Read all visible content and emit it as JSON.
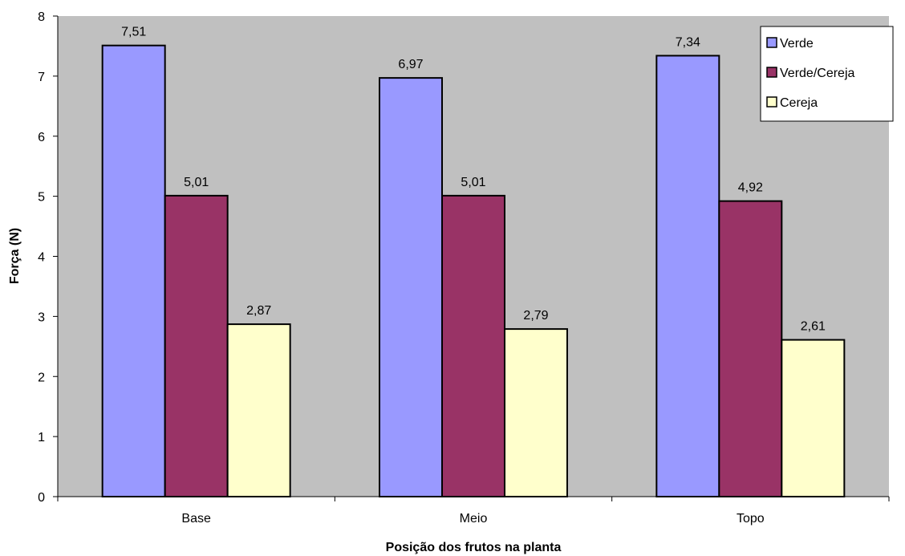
{
  "chart_data": {
    "type": "bar",
    "title": "",
    "xlabel": "Posição dos frutos na planta",
    "ylabel": "Força (N)",
    "categories": [
      "Base",
      "Meio",
      "Topo"
    ],
    "series": [
      {
        "name": "Verde",
        "values": [
          7.51,
          6.97,
          7.34
        ],
        "labels": [
          "7,51",
          "6,97",
          "7,34"
        ],
        "color": "#9999ff"
      },
      {
        "name": "Verde/Cereja",
        "values": [
          5.01,
          5.01,
          4.92
        ],
        "labels": [
          "5,01",
          "5,01",
          "4,92"
        ],
        "color": "#993366"
      },
      {
        "name": "Cereja",
        "values": [
          2.87,
          2.79,
          2.61
        ],
        "labels": [
          "2,87",
          "2,79",
          "2,61"
        ],
        "color": "#ffffcc"
      }
    ],
    "ylim": [
      0,
      8
    ],
    "yticks": [
      "0",
      "1",
      "2",
      "3",
      "4",
      "5",
      "6",
      "7",
      "8"
    ],
    "grid": false,
    "legend_position": "top-right",
    "plot_background": "#c0c0c0"
  }
}
